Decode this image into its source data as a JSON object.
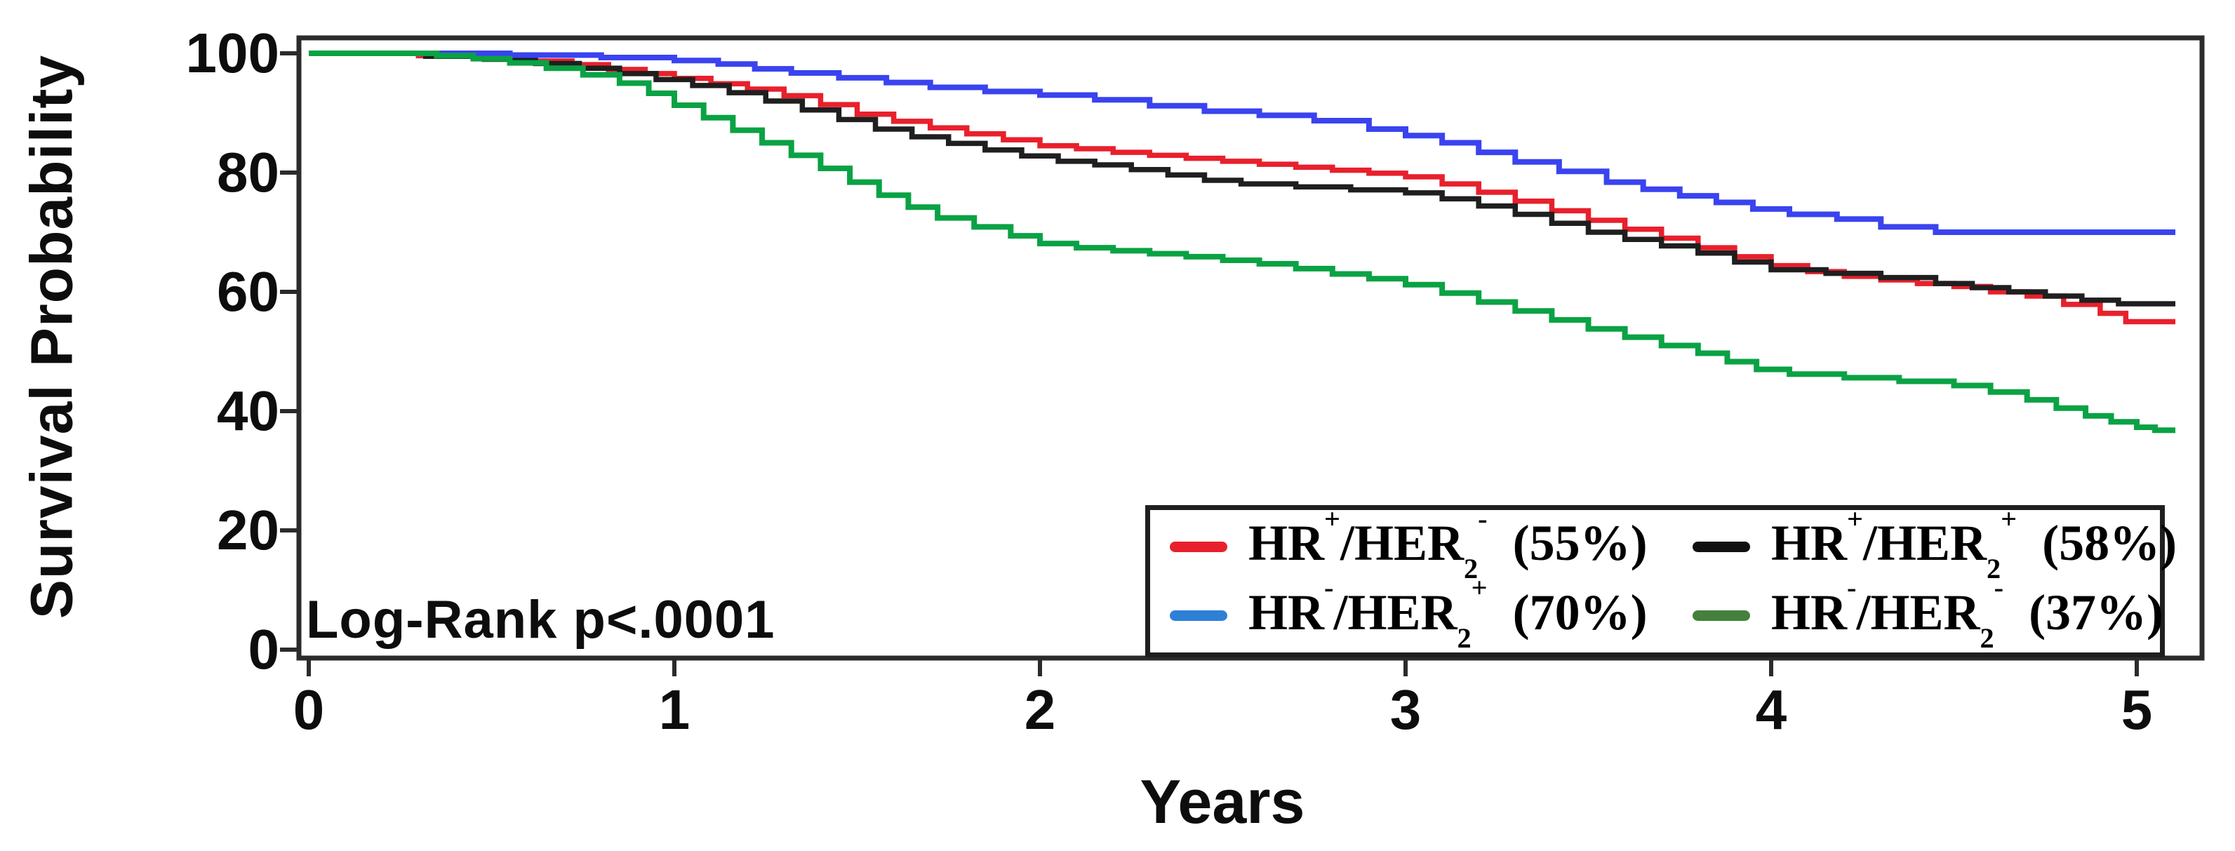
{
  "figure": {
    "ylabel": "Survival Probability",
    "xlabel": "Years",
    "annotation": "Log-Rank p<.0001"
  },
  "chart_data": {
    "type": "line",
    "subtype": "kaplan-meier-step",
    "title": "",
    "xlabel": "Years",
    "ylabel": "Survival Probability",
    "xlim": [
      0,
      5
    ],
    "ylim": [
      0,
      100
    ],
    "x_ticks": [
      0,
      1,
      2,
      3,
      4,
      5
    ],
    "y_ticks": [
      100,
      80,
      60,
      40,
      20,
      0
    ],
    "grid": false,
    "annotation": "Log-Rank p<.0001",
    "legend_position": "bottom-right",
    "legend_columns": 2,
    "series": [
      {
        "id": "hr-pos-her2-neg",
        "name": "HR+/HER2- (55%)",
        "hr": "HR",
        "hr_sign": "+",
        "her": "/HER",
        "her_sub": "2",
        "her_sign": "-",
        "pct": "(55%)",
        "five_year_pct": 55,
        "color": "#E8202C",
        "swatch_color": "#E8202C",
        "width": 7.5,
        "points": [
          [
            0,
            100
          ],
          [
            0.3,
            99.6
          ],
          [
            0.45,
            99.2
          ],
          [
            0.6,
            98.7
          ],
          [
            0.72,
            98.1
          ],
          [
            0.82,
            97.3
          ],
          [
            0.92,
            96.6
          ],
          [
            1.0,
            95.8
          ],
          [
            1.1,
            94.9
          ],
          [
            1.2,
            94.0
          ],
          [
            1.3,
            92.9
          ],
          [
            1.4,
            91.4
          ],
          [
            1.5,
            89.8
          ],
          [
            1.6,
            88.6
          ],
          [
            1.7,
            87.5
          ],
          [
            1.8,
            86.5
          ],
          [
            1.9,
            85.5
          ],
          [
            2.0,
            84.5
          ],
          [
            2.1,
            84.0
          ],
          [
            2.2,
            83.4
          ],
          [
            2.3,
            82.9
          ],
          [
            2.4,
            82.4
          ],
          [
            2.5,
            81.9
          ],
          [
            2.6,
            81.4
          ],
          [
            2.7,
            80.9
          ],
          [
            2.8,
            80.4
          ],
          [
            2.9,
            79.9
          ],
          [
            3.0,
            79.3
          ],
          [
            3.1,
            78.1
          ],
          [
            3.2,
            76.7
          ],
          [
            3.3,
            75.2
          ],
          [
            3.4,
            73.6
          ],
          [
            3.5,
            72.0
          ],
          [
            3.6,
            70.5
          ],
          [
            3.7,
            69.0
          ],
          [
            3.8,
            67.4
          ],
          [
            3.9,
            65.9
          ],
          [
            4.0,
            64.4
          ],
          [
            4.1,
            63.4
          ],
          [
            4.2,
            62.6
          ],
          [
            4.3,
            62.0
          ],
          [
            4.4,
            61.4
          ],
          [
            4.5,
            60.9
          ],
          [
            4.6,
            60.0
          ],
          [
            4.7,
            59.3
          ],
          [
            4.8,
            57.9
          ],
          [
            4.9,
            56.4
          ],
          [
            4.97,
            55.0
          ]
        ]
      },
      {
        "id": "hr-pos-her2-pos",
        "name": "HR+/HER2+ (58%)",
        "hr": "HR",
        "hr_sign": "+",
        "her": "/HER",
        "her_sub": "2",
        "her_sign": "+",
        "pct": "(58%)",
        "five_year_pct": 58,
        "color": "#1f1f1f",
        "swatch_color": "#111111",
        "width": 7.5,
        "points": [
          [
            0,
            100
          ],
          [
            0.32,
            99.5
          ],
          [
            0.48,
            99.0
          ],
          [
            0.62,
            98.3
          ],
          [
            0.74,
            97.5
          ],
          [
            0.85,
            96.6
          ],
          [
            0.95,
            95.6
          ],
          [
            1.05,
            94.6
          ],
          [
            1.15,
            93.4
          ],
          [
            1.25,
            92.0
          ],
          [
            1.35,
            90.5
          ],
          [
            1.45,
            88.9
          ],
          [
            1.55,
            87.3
          ],
          [
            1.65,
            86.0
          ],
          [
            1.75,
            84.9
          ],
          [
            1.85,
            83.8
          ],
          [
            1.95,
            82.8
          ],
          [
            2.05,
            81.9
          ],
          [
            2.15,
            81.3
          ],
          [
            2.25,
            80.5
          ],
          [
            2.35,
            79.6
          ],
          [
            2.45,
            78.7
          ],
          [
            2.55,
            78.1
          ],
          [
            2.7,
            77.6
          ],
          [
            2.85,
            77.1
          ],
          [
            3.0,
            76.6
          ],
          [
            3.1,
            75.6
          ],
          [
            3.2,
            74.4
          ],
          [
            3.3,
            73.0
          ],
          [
            3.4,
            71.5
          ],
          [
            3.5,
            70.0
          ],
          [
            3.6,
            68.8
          ],
          [
            3.7,
            67.7
          ],
          [
            3.8,
            66.5
          ],
          [
            3.9,
            65.0
          ],
          [
            4.0,
            63.7
          ],
          [
            4.15,
            63.1
          ],
          [
            4.3,
            62.4
          ],
          [
            4.45,
            61.4
          ],
          [
            4.55,
            60.7
          ],
          [
            4.65,
            60.0
          ],
          [
            4.75,
            59.3
          ],
          [
            4.85,
            58.6
          ],
          [
            4.95,
            58.0
          ]
        ]
      },
      {
        "id": "hr-neg-her2-pos",
        "name": "HR-/HER2+ (70%)",
        "hr": "HR",
        "hr_sign": "-",
        "her": "/HER",
        "her_sub": "2",
        "her_sign": "+",
        "pct": "(70%)",
        "five_year_pct": 70,
        "color": "#3A43EF",
        "swatch_color": "#2E7FD6",
        "width": 8,
        "points": [
          [
            0,
            100
          ],
          [
            0.55,
            99.7
          ],
          [
            0.8,
            99.3
          ],
          [
            1.0,
            98.8
          ],
          [
            1.12,
            98.2
          ],
          [
            1.22,
            97.4
          ],
          [
            1.32,
            96.7
          ],
          [
            1.45,
            95.9
          ],
          [
            1.58,
            95.1
          ],
          [
            1.7,
            94.3
          ],
          [
            1.85,
            93.6
          ],
          [
            2.0,
            93.0
          ],
          [
            2.15,
            92.2
          ],
          [
            2.3,
            91.2
          ],
          [
            2.45,
            90.3
          ],
          [
            2.6,
            89.6
          ],
          [
            2.75,
            88.7
          ],
          [
            2.9,
            87.3
          ],
          [
            3.0,
            86.2
          ],
          [
            3.1,
            85.0
          ],
          [
            3.2,
            83.4
          ],
          [
            3.3,
            81.8
          ],
          [
            3.42,
            80.2
          ],
          [
            3.55,
            78.4
          ],
          [
            3.65,
            77.2
          ],
          [
            3.75,
            76.1
          ],
          [
            3.85,
            75.0
          ],
          [
            3.95,
            73.9
          ],
          [
            4.05,
            73.0
          ],
          [
            4.18,
            72.2
          ],
          [
            4.3,
            70.9
          ],
          [
            4.45,
            70.0
          ]
        ]
      },
      {
        "id": "hr-neg-her2-neg",
        "name": "HR-/HER2- (37%)",
        "hr": "HR",
        "hr_sign": "-",
        "her": "/HER",
        "her_sub": "2",
        "her_sign": "-",
        "pct": "(37%)",
        "five_year_pct": 37,
        "color": "#0AA244",
        "swatch_color": "#44813C",
        "width": 8,
        "points": [
          [
            0,
            100
          ],
          [
            0.35,
            99.6
          ],
          [
            0.45,
            99.1
          ],
          [
            0.55,
            98.4
          ],
          [
            0.65,
            97.5
          ],
          [
            0.75,
            96.4
          ],
          [
            0.85,
            95.0
          ],
          [
            0.93,
            93.3
          ],
          [
            1.0,
            91.3
          ],
          [
            1.08,
            89.2
          ],
          [
            1.16,
            87.1
          ],
          [
            1.24,
            85.0
          ],
          [
            1.32,
            82.9
          ],
          [
            1.4,
            80.7
          ],
          [
            1.48,
            78.4
          ],
          [
            1.56,
            76.2
          ],
          [
            1.64,
            74.2
          ],
          [
            1.72,
            72.4
          ],
          [
            1.82,
            70.9
          ],
          [
            1.92,
            69.4
          ],
          [
            2.0,
            68.1
          ],
          [
            2.1,
            67.4
          ],
          [
            2.2,
            66.9
          ],
          [
            2.3,
            66.4
          ],
          [
            2.4,
            65.9
          ],
          [
            2.5,
            65.3
          ],
          [
            2.6,
            64.7
          ],
          [
            2.7,
            63.9
          ],
          [
            2.8,
            63.0
          ],
          [
            2.9,
            62.2
          ],
          [
            3.0,
            61.2
          ],
          [
            3.1,
            59.8
          ],
          [
            3.2,
            58.3
          ],
          [
            3.3,
            56.8
          ],
          [
            3.4,
            55.3
          ],
          [
            3.5,
            53.8
          ],
          [
            3.6,
            52.4
          ],
          [
            3.7,
            51.0
          ],
          [
            3.8,
            49.7
          ],
          [
            3.88,
            48.3
          ],
          [
            3.96,
            47.0
          ],
          [
            4.05,
            46.2
          ],
          [
            4.2,
            45.6
          ],
          [
            4.35,
            45.0
          ],
          [
            4.5,
            44.3
          ],
          [
            4.6,
            43.2
          ],
          [
            4.7,
            41.9
          ],
          [
            4.78,
            40.5
          ],
          [
            4.86,
            39.2
          ],
          [
            4.93,
            38.2
          ],
          [
            5.0,
            37.3
          ],
          [
            5.05,
            36.8
          ]
        ]
      }
    ]
  }
}
